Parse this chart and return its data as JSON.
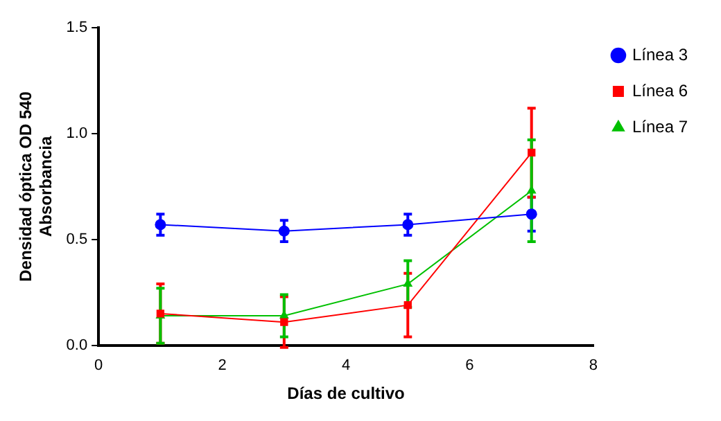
{
  "chart_data": {
    "type": "line",
    "xlabel": "Días de cultivo",
    "ylabel": "Densidad óptica OD 540\nAbsorbancia",
    "x": [
      1,
      3,
      5,
      7
    ],
    "series": [
      {
        "name": "Línea 3",
        "color": "#0000ff",
        "marker": "circle",
        "values": [
          0.57,
          0.54,
          0.57,
          0.62
        ],
        "errors": [
          0.05,
          0.05,
          0.05,
          0.08
        ]
      },
      {
        "name": "Línea 6",
        "color": "#ff0000",
        "marker": "square",
        "values": [
          0.15,
          0.11,
          0.19,
          0.91
        ],
        "errors": [
          0.14,
          0.12,
          0.15,
          0.21
        ]
      },
      {
        "name": "Línea 7",
        "color": "#00c000",
        "marker": "triangle",
        "values": [
          0.14,
          0.14,
          0.29,
          0.73
        ],
        "errors": [
          0.13,
          0.1,
          0.11,
          0.24
        ]
      }
    ],
    "xlim": [
      0,
      8
    ],
    "xticks": [
      0,
      2,
      4,
      6,
      8
    ],
    "ylim": [
      0,
      1.5
    ],
    "yticks": [
      {
        "value": 0,
        "label": "0.0"
      },
      {
        "value": 0.5,
        "label": "0.5"
      },
      {
        "value": 1,
        "label": "1.0"
      },
      {
        "value": 1.5,
        "label": "1.5"
      }
    ],
    "grid": false,
    "legend": "right"
  }
}
